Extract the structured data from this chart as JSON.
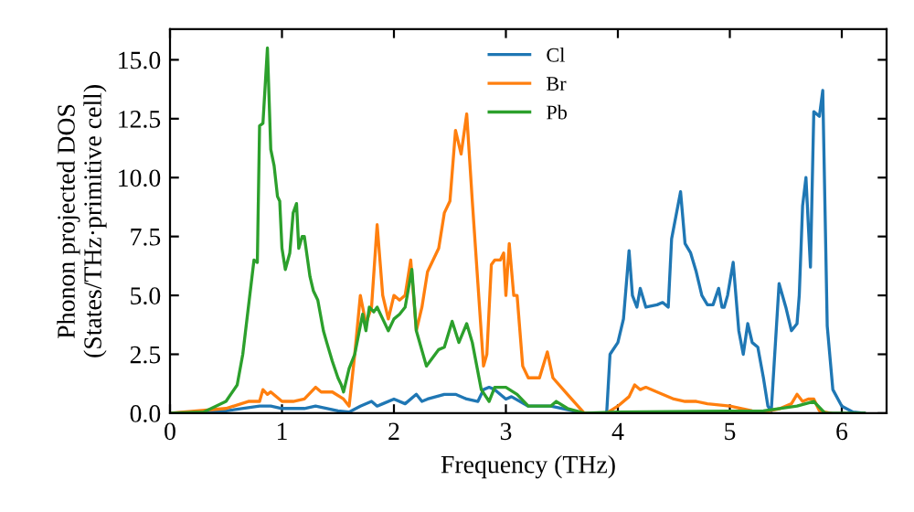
{
  "chart_data": {
    "type": "line",
    "xlabel": "Frequency (THz)",
    "ylabel": "Phonon projected DOS\n(States/THz·primitive cell)",
    "xlim": [
      0,
      6.4
    ],
    "ylim": [
      0,
      16.3
    ],
    "xticks": [
      0,
      1,
      2,
      3,
      4,
      5,
      6
    ],
    "yticks": [
      {
        "value": 0,
        "label": "0.0"
      },
      {
        "value": 2.5,
        "label": "2.5"
      },
      {
        "value": 5,
        "label": "5.0"
      },
      {
        "value": 7.5,
        "label": "7.5"
      },
      {
        "value": 10,
        "label": "10.0"
      },
      {
        "value": 12.5,
        "label": "12.5"
      },
      {
        "value": 15,
        "label": "15.0"
      }
    ],
    "grid": false,
    "legend": "top",
    "marker": "none",
    "line_style": "solid",
    "series": [
      {
        "name": "Cl",
        "color": "#1f77b4",
        "x": [
          0,
          0.5,
          0.8,
          0.9,
          1.0,
          1.2,
          1.3,
          1.5,
          1.6,
          1.7,
          1.8,
          1.85,
          1.9,
          2.0,
          2.1,
          2.2,
          2.25,
          2.3,
          2.45,
          2.55,
          2.65,
          2.75,
          2.8,
          2.85,
          2.9,
          3.0,
          3.05,
          3.2,
          3.4,
          3.6,
          3.7,
          3.9,
          3.93,
          4.0,
          4.05,
          4.1,
          4.13,
          4.17,
          4.2,
          4.25,
          4.35,
          4.4,
          4.45,
          4.48,
          4.56,
          4.6,
          4.65,
          4.7,
          4.75,
          4.8,
          4.85,
          4.9,
          4.93,
          4.95,
          4.98,
          5.03,
          5.08,
          5.12,
          5.16,
          5.2,
          5.25,
          5.3,
          5.34,
          5.37,
          5.44,
          5.5,
          5.55,
          5.6,
          5.62,
          5.65,
          5.68,
          5.72,
          5.75,
          5.8,
          5.83,
          5.87,
          5.92,
          6.0,
          6.1,
          6.2
        ],
        "values": [
          0,
          0.1,
          0.3,
          0.3,
          0.2,
          0.2,
          0.3,
          0.1,
          0.05,
          0.3,
          0.5,
          0.3,
          0.4,
          0.6,
          0.4,
          0.8,
          0.5,
          0.6,
          0.8,
          0.8,
          0.6,
          0.5,
          1.0,
          1.1,
          1.0,
          0.6,
          0.7,
          0.3,
          0.3,
          0.1,
          0,
          0,
          2.5,
          3.0,
          4.0,
          6.9,
          5.0,
          4.5,
          5.3,
          4.5,
          4.6,
          4.7,
          4.5,
          7.4,
          9.4,
          7.2,
          6.8,
          6.0,
          5.0,
          4.6,
          4.6,
          5.3,
          4.5,
          4.5,
          5.0,
          6.4,
          3.5,
          2.5,
          3.8,
          3.0,
          2.8,
          1.5,
          0.3,
          0.1,
          5.5,
          4.5,
          3.5,
          3.8,
          5.0,
          8.8,
          10.0,
          6.2,
          12.8,
          12.6,
          13.7,
          3.7,
          1.0,
          0.3,
          0.05,
          0
        ]
      },
      {
        "name": "Br",
        "color": "#ff7f0e",
        "x": [
          0,
          0.5,
          0.7,
          0.8,
          0.83,
          0.87,
          0.9,
          1.0,
          1.1,
          1.2,
          1.3,
          1.35,
          1.45,
          1.55,
          1.6,
          1.65,
          1.7,
          1.75,
          1.8,
          1.85,
          1.9,
          1.95,
          2.0,
          2.05,
          2.1,
          2.15,
          2.2,
          2.25,
          2.3,
          2.4,
          2.45,
          2.5,
          2.55,
          2.6,
          2.65,
          2.7,
          2.75,
          2.8,
          2.83,
          2.87,
          2.9,
          2.95,
          2.98,
          3.0,
          3.03,
          3.07,
          3.1,
          3.15,
          3.2,
          3.3,
          3.37,
          3.42,
          3.55,
          3.7,
          3.9,
          4.0,
          4.1,
          4.15,
          4.2,
          4.25,
          4.35,
          4.5,
          4.6,
          4.7,
          4.8,
          5.0,
          5.2,
          5.3,
          5.45,
          5.55,
          5.6,
          5.65,
          5.7,
          5.75,
          5.8,
          5.9
        ],
        "values": [
          0,
          0.2,
          0.5,
          0.5,
          1.0,
          0.8,
          0.9,
          0.5,
          0.5,
          0.6,
          1.1,
          0.9,
          0.9,
          0.6,
          0.3,
          2.5,
          5.0,
          3.8,
          4.5,
          8.0,
          5.0,
          4.0,
          5.0,
          4.8,
          5.0,
          6.5,
          3.5,
          4.5,
          6.0,
          7.0,
          8.5,
          9.0,
          12.0,
          11.0,
          12.7,
          9.0,
          5.5,
          2.0,
          2.5,
          6.3,
          6.5,
          6.5,
          6.8,
          5.0,
          7.2,
          5.0,
          5.0,
          2.0,
          1.5,
          1.5,
          2.6,
          1.5,
          0.8,
          0,
          0,
          0.3,
          0.7,
          1.2,
          1.0,
          1.1,
          0.9,
          0.6,
          0.5,
          0.5,
          0.4,
          0.3,
          0.1,
          0.05,
          0.2,
          0.4,
          0.8,
          0.5,
          0.6,
          0.6,
          0.1,
          0
        ]
      },
      {
        "name": "Pb",
        "color": "#2ca02c",
        "x": [
          0,
          0.3,
          0.5,
          0.6,
          0.65,
          0.7,
          0.75,
          0.78,
          0.8,
          0.83,
          0.87,
          0.9,
          0.93,
          0.96,
          0.98,
          1.0,
          1.03,
          1.07,
          1.1,
          1.13,
          1.15,
          1.18,
          1.2,
          1.25,
          1.28,
          1.32,
          1.37,
          1.4,
          1.45,
          1.5,
          1.53,
          1.55,
          1.6,
          1.65,
          1.72,
          1.75,
          1.78,
          1.82,
          1.85,
          1.9,
          1.95,
          2.0,
          2.05,
          2.1,
          2.16,
          2.2,
          2.29,
          2.4,
          2.45,
          2.52,
          2.58,
          2.65,
          2.7,
          2.78,
          2.85,
          2.9,
          3.0,
          3.1,
          3.2,
          3.4,
          3.45,
          3.55,
          3.7,
          4.0,
          5.3,
          5.6,
          5.75,
          5.85,
          6.2
        ],
        "values": [
          0,
          0.05,
          0.5,
          1.2,
          2.5,
          4.5,
          6.5,
          6.4,
          12.2,
          12.3,
          15.5,
          11.2,
          10.5,
          9.2,
          9.0,
          7.0,
          6.1,
          6.8,
          8.5,
          8.9,
          7.0,
          7.5,
          7.5,
          5.8,
          5.2,
          4.8,
          3.5,
          3.0,
          2.2,
          1.5,
          1.2,
          0.9,
          1.9,
          2.5,
          4.2,
          3.5,
          4.5,
          4.3,
          4.5,
          4.0,
          3.5,
          4.0,
          4.2,
          4.5,
          6.1,
          3.5,
          2.0,
          2.7,
          2.8,
          3.9,
          3.0,
          3.8,
          3.0,
          1.0,
          0.5,
          1.1,
          1.1,
          0.8,
          0.3,
          0.3,
          0.5,
          0.2,
          0,
          0.05,
          0.1,
          0.3,
          0.5,
          0,
          0
        ]
      }
    ]
  }
}
